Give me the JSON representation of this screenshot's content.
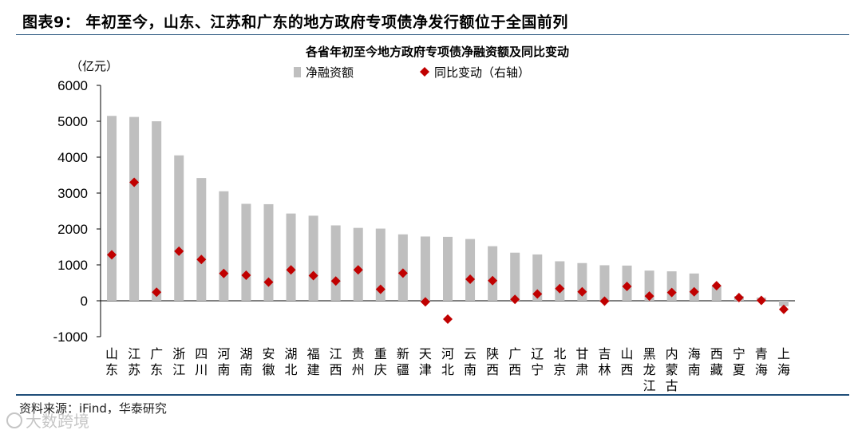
{
  "figure_title": "图表9： 年初至今，山东、江苏和广东的地方政府专项债净发行额位于全国前列",
  "source": "资料来源：iFind，华泰研究",
  "watermark": "大数跨境",
  "chart_data": {
    "type": "bar",
    "title": "各省年初至今地方政府专项债净融资额及同比变动",
    "unit_label": "（亿元）",
    "categories": [
      "山东",
      "江苏",
      "广东",
      "浙江",
      "四川",
      "河南",
      "湖南",
      "安徽",
      "湖北",
      "福建",
      "江西",
      "贵州",
      "重庆",
      "新疆",
      "天津",
      "河北",
      "云南",
      "陕西",
      "广西",
      "辽宁",
      "北京",
      "甘肃",
      "吉林",
      "山西",
      "黑龙江",
      "内蒙古",
      "海南",
      "西藏",
      "宁夏",
      "青海",
      "上海"
    ],
    "series": [
      {
        "name": "净融资额",
        "kind": "bar",
        "color": "#bfbfbf",
        "values": [
          5150,
          5120,
          5000,
          4050,
          3420,
          3050,
          2700,
          2690,
          2430,
          2370,
          2100,
          2030,
          2010,
          1850,
          1790,
          1780,
          1720,
          1520,
          1340,
          1290,
          1100,
          1050,
          990,
          980,
          840,
          820,
          760,
          420,
          130,
          90,
          -150
        ]
      },
      {
        "name": "同比变动（右轴）",
        "kind": "scatter",
        "marker": "diamond",
        "color": "#c00000",
        "values": [
          1280,
          3300,
          240,
          1380,
          1150,
          760,
          710,
          520,
          860,
          700,
          550,
          860,
          320,
          770,
          -30,
          -510,
          600,
          560,
          40,
          190,
          340,
          250,
          -10,
          400,
          130,
          230,
          250,
          420,
          90,
          10,
          -240
        ]
      }
    ],
    "ylim": [
      -1000,
      6000
    ],
    "yticks": [
      6000,
      5000,
      4000,
      3000,
      2000,
      1000,
      0,
      -1000
    ]
  }
}
